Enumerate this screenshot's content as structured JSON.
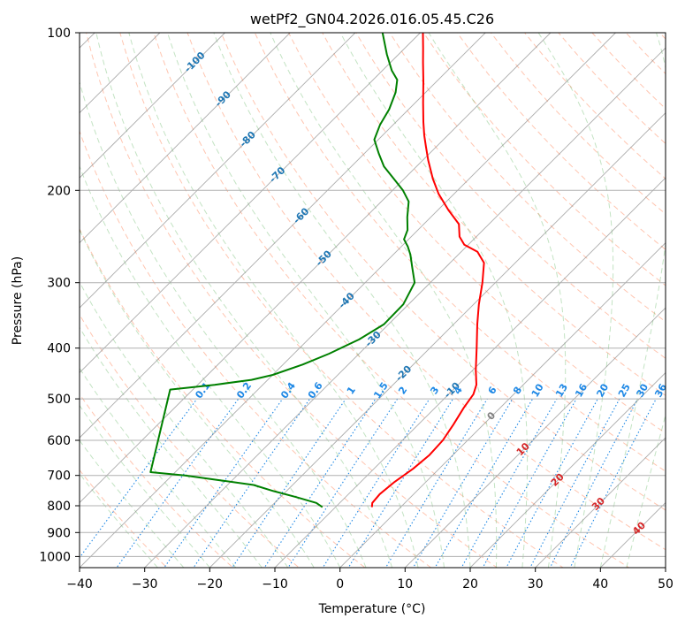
{
  "chart_data": {
    "type": "line",
    "subtype": "skew-t log-p",
    "title": "wetPf2_GN04.2026.016.05.45.C26",
    "xlabel": "Temperature (°C)",
    "ylabel": "Pressure (hPa)",
    "xlim": [
      -40,
      50
    ],
    "ylim": [
      1050,
      100
    ],
    "y_scale": "log",
    "grid": true,
    "x_ticks": [
      "−40",
      "−30",
      "−20",
      "−10",
      "0",
      "10",
      "20",
      "30",
      "40",
      "50"
    ],
    "y_ticks": [
      "100",
      "200",
      "300",
      "400",
      "500",
      "600",
      "700",
      "800",
      "900",
      "1000"
    ],
    "isotherm_labels": [
      "-100",
      "-90",
      "-80",
      "-70",
      "-60",
      "-50",
      "-40",
      "-30",
      "-20",
      "-10"
    ],
    "zero_label": "0",
    "warm_labels": [
      "10",
      "20",
      "30",
      "40"
    ],
    "mixing_ratio_labels": [
      "0.1",
      "0.2",
      "0.4",
      "0.6",
      "1",
      "1.5",
      "2",
      "3",
      "4",
      "6",
      "8",
      "10",
      "13",
      "16",
      "20",
      "25",
      "30",
      "36"
    ],
    "colors": {
      "temperature": "#ff0000",
      "dewpoint": "#008000",
      "dry_adiabat": "#ff7f50",
      "moist_adiabat": "#6ab96a",
      "mixing_ratio": "#1e88e5",
      "isotherm": "#808080",
      "isotherm_label": "#1f77b4",
      "warm_label": "#d62728"
    },
    "series": [
      {
        "key": "temperature",
        "points": [
          {
            "p": 805,
            "t": -4.4
          },
          {
            "p": 790,
            "t": -5.0
          },
          {
            "p": 760,
            "t": -5.2
          },
          {
            "p": 720,
            "t": -4.8
          },
          {
            "p": 680,
            "t": -4.0
          },
          {
            "p": 640,
            "t": -3.6
          },
          {
            "p": 600,
            "t": -3.8
          },
          {
            "p": 560,
            "t": -4.6
          },
          {
            "p": 520,
            "t": -5.6
          },
          {
            "p": 490,
            "t": -6.2
          },
          {
            "p": 470,
            "t": -7.2
          },
          {
            "p": 440,
            "t": -9.6
          },
          {
            "p": 400,
            "t": -12.8
          },
          {
            "p": 360,
            "t": -16.4
          },
          {
            "p": 330,
            "t": -19.2
          },
          {
            "p": 300,
            "t": -22.0
          },
          {
            "p": 275,
            "t": -24.8
          },
          {
            "p": 262,
            "t": -27.5
          },
          {
            "p": 254,
            "t": -30.6
          },
          {
            "p": 245,
            "t": -32.6
          },
          {
            "p": 232,
            "t": -34.6
          },
          {
            "p": 218,
            "t": -38.4
          },
          {
            "p": 203,
            "t": -42.4
          },
          {
            "p": 190,
            "t": -45.6
          },
          {
            "p": 175,
            "t": -49.2
          },
          {
            "p": 165,
            "t": -51.6
          },
          {
            "p": 157,
            "t": -53.6
          },
          {
            "p": 148,
            "t": -55.8
          },
          {
            "p": 136,
            "t": -58.8
          },
          {
            "p": 124,
            "t": -62.0
          },
          {
            "p": 114,
            "t": -65.0
          },
          {
            "p": 107,
            "t": -67.2
          },
          {
            "p": 100,
            "t": -69.6
          }
        ]
      },
      {
        "key": "dewpoint",
        "points": [
          {
            "p": 805,
            "t": -12.0
          },
          {
            "p": 790,
            "t": -13.6
          },
          {
            "p": 770,
            "t": -17.6
          },
          {
            "p": 750,
            "t": -22.0
          },
          {
            "p": 730,
            "t": -26.0
          },
          {
            "p": 715,
            "t": -32.0
          },
          {
            "p": 700,
            "t": -38.0
          },
          {
            "p": 690,
            "t": -43.8
          },
          {
            "p": 480,
            "t": -53.5
          },
          {
            "p": 470,
            "t": -47.4
          },
          {
            "p": 460,
            "t": -42.5
          },
          {
            "p": 450,
            "t": -40.0
          },
          {
            "p": 430,
            "t": -37.0
          },
          {
            "p": 410,
            "t": -34.6
          },
          {
            "p": 385,
            "t": -32.2
          },
          {
            "p": 360,
            "t": -30.7
          },
          {
            "p": 330,
            "t": -30.8
          },
          {
            "p": 300,
            "t": -32.4
          },
          {
            "p": 280,
            "t": -35.2
          },
          {
            "p": 265,
            "t": -37.4
          },
          {
            "p": 256,
            "t": -39.0
          },
          {
            "p": 248,
            "t": -40.7
          },
          {
            "p": 238,
            "t": -41.6
          },
          {
            "p": 225,
            "t": -43.6
          },
          {
            "p": 210,
            "t": -45.8
          },
          {
            "p": 200,
            "t": -48.4
          },
          {
            "p": 190,
            "t": -51.6
          },
          {
            "p": 180,
            "t": -55.0
          },
          {
            "p": 170,
            "t": -57.8
          },
          {
            "p": 160,
            "t": -60.6
          },
          {
            "p": 150,
            "t": -62.0
          },
          {
            "p": 140,
            "t": -63.0
          },
          {
            "p": 130,
            "t": -64.6
          },
          {
            "p": 123,
            "t": -66.3
          },
          {
            "p": 118,
            "t": -68.6
          },
          {
            "p": 110,
            "t": -71.8
          },
          {
            "p": 100,
            "t": -75.8
          }
        ]
      }
    ]
  }
}
